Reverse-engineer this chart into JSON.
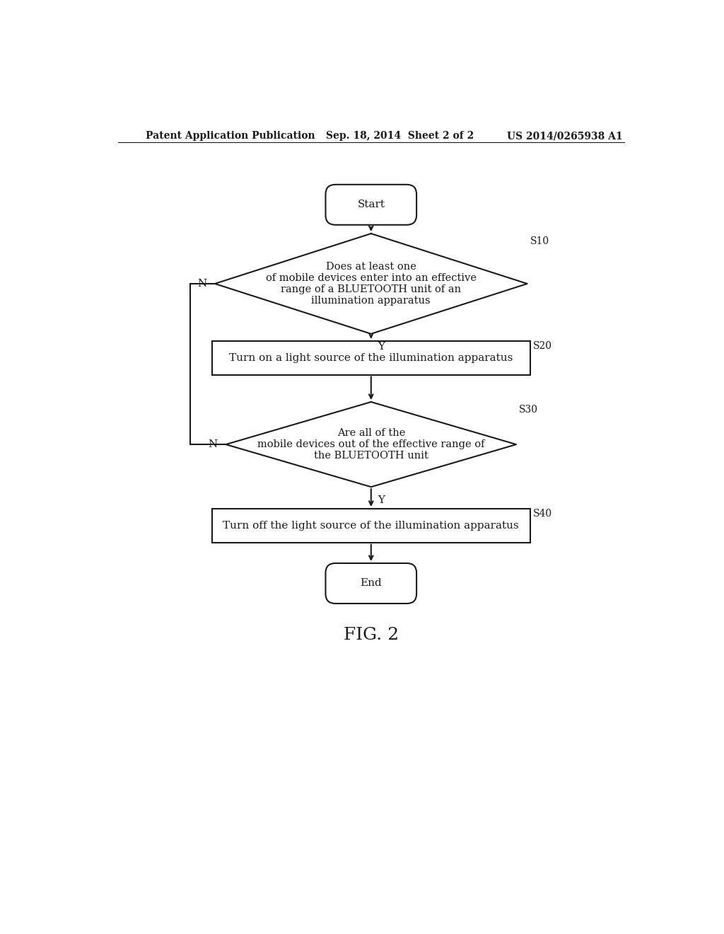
{
  "bg_color": "#ffffff",
  "header_left": "Patent Application Publication",
  "header_mid": "Sep. 18, 2014  Sheet 2 of 2",
  "header_right": "US 2014/0265938 A1",
  "fig_label": "FIG. 2",
  "start_label": "Start",
  "end_label": "End",
  "diamond1_text": "Does at least one\nof mobile devices enter into an effective\nrange of a BLUETOOTH unit of an\nillumination apparatus",
  "diamond1_step": "S10",
  "rect1_text": "Turn on a light source of the illumination apparatus",
  "rect1_step": "S20",
  "diamond2_text": "Are all of the\nmobile devices out of the effective range of\nthe BLUETOOTH unit",
  "diamond2_step": "S30",
  "rect2_text": "Turn off the light source of the illumination apparatus",
  "rect2_step": "S40",
  "line_color": "#1a1a1a",
  "text_color": "#1a1a1a",
  "font_size_body": 11,
  "font_size_header": 10,
  "font_size_step": 10,
  "font_size_fig": 18
}
